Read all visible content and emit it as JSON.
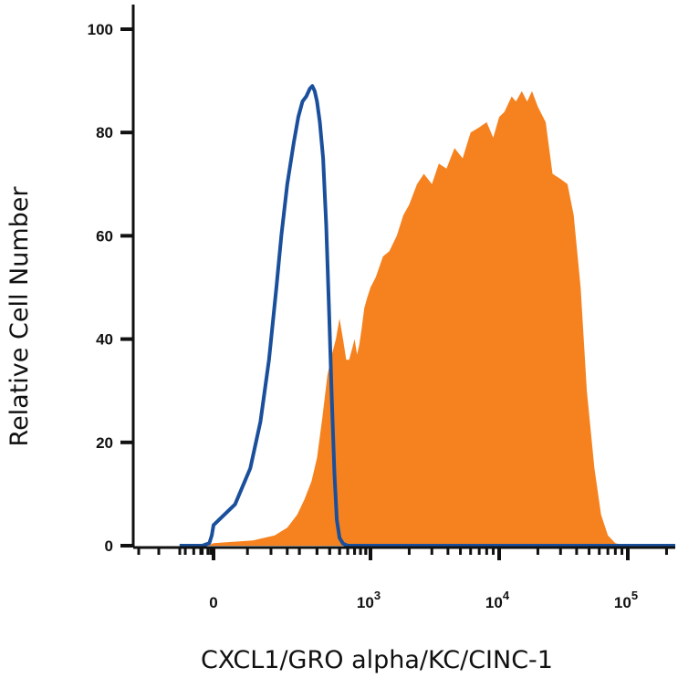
{
  "chart_data": {
    "type": "area",
    "title": "",
    "xlabel": "CXCL1/GRO alpha/KC/CINC-1",
    "ylabel": "Relative Cell Number",
    "x_scale": "biexponential",
    "x_ticks": [
      {
        "value": 0,
        "base": "0",
        "exp": ""
      },
      {
        "value": 1000,
        "base": "10",
        "exp": "3"
      },
      {
        "value": 10000,
        "base": "10",
        "exp": "4"
      },
      {
        "value": 100000,
        "base": "10",
        "exp": "5"
      }
    ],
    "y_ticks": [
      "0",
      "20",
      "40",
      "60",
      "80",
      "100"
    ],
    "ylim": [
      0,
      100
    ],
    "grid": false,
    "legend": "none",
    "series": [
      {
        "style": "filled",
        "color": "#f5821f",
        "points": [
          [
            -1200,
            0
          ],
          [
            -200,
            0
          ],
          [
            0,
            0.5
          ],
          [
            60,
            1
          ],
          [
            110,
            2
          ],
          [
            150,
            3.5
          ],
          [
            190,
            6
          ],
          [
            225,
            9
          ],
          [
            265,
            12.5
          ],
          [
            300,
            17
          ],
          [
            340,
            25
          ],
          [
            380,
            33
          ],
          [
            420,
            37
          ],
          [
            460,
            40
          ],
          [
            500,
            44
          ],
          [
            540,
            40
          ],
          [
            580,
            36
          ],
          [
            620,
            36
          ],
          [
            660,
            38
          ],
          [
            700,
            40
          ],
          [
            740,
            37
          ],
          [
            780,
            39
          ],
          [
            820,
            42
          ],
          [
            870,
            46
          ],
          [
            930,
            48
          ],
          [
            1000,
            50
          ],
          [
            1100,
            52
          ],
          [
            1250,
            56
          ],
          [
            1400,
            57
          ],
          [
            1600,
            60
          ],
          [
            1800,
            64
          ],
          [
            2000,
            66
          ],
          [
            2300,
            70
          ],
          [
            2600,
            72
          ],
          [
            3000,
            70
          ],
          [
            3400,
            74
          ],
          [
            3900,
            73
          ],
          [
            4500,
            77
          ],
          [
            5200,
            75
          ],
          [
            6000,
            80
          ],
          [
            7000,
            81
          ],
          [
            8000,
            82
          ],
          [
            9000,
            79
          ],
          [
            10000,
            83
          ],
          [
            11000,
            84
          ],
          [
            12500,
            87
          ],
          [
            13500,
            86
          ],
          [
            15000,
            88
          ],
          [
            16500,
            86
          ],
          [
            18000,
            88
          ],
          [
            20000,
            85
          ],
          [
            23000,
            82
          ],
          [
            26000,
            72
          ],
          [
            30000,
            71
          ],
          [
            34000,
            70
          ],
          [
            38000,
            64
          ],
          [
            43000,
            50
          ],
          [
            48000,
            30
          ],
          [
            55000,
            15
          ],
          [
            62000,
            6
          ],
          [
            70000,
            2
          ],
          [
            80000,
            0.5
          ],
          [
            95000,
            0
          ],
          [
            300000,
            0
          ]
        ]
      },
      {
        "style": "outline",
        "color": "#1a4f9c",
        "points": [
          [
            -1200,
            0
          ],
          [
            -400,
            0
          ],
          [
            -150,
            0.5
          ],
          [
            -60,
            2
          ],
          [
            0,
            4
          ],
          [
            30,
            8
          ],
          [
            55,
            15
          ],
          [
            75,
            24
          ],
          [
            95,
            36
          ],
          [
            115,
            50
          ],
          [
            130,
            60
          ],
          [
            150,
            70
          ],
          [
            175,
            78
          ],
          [
            195,
            83
          ],
          [
            215,
            86
          ],
          [
            235,
            87
          ],
          [
            255,
            88.5
          ],
          [
            270,
            89
          ],
          [
            285,
            88
          ],
          [
            300,
            86
          ],
          [
            320,
            82
          ],
          [
            345,
            75
          ],
          [
            370,
            62
          ],
          [
            395,
            45
          ],
          [
            420,
            28
          ],
          [
            445,
            14
          ],
          [
            470,
            5
          ],
          [
            500,
            1.5
          ],
          [
            540,
            0.4
          ],
          [
            600,
            0
          ],
          [
            300000,
            0
          ]
        ]
      }
    ]
  }
}
